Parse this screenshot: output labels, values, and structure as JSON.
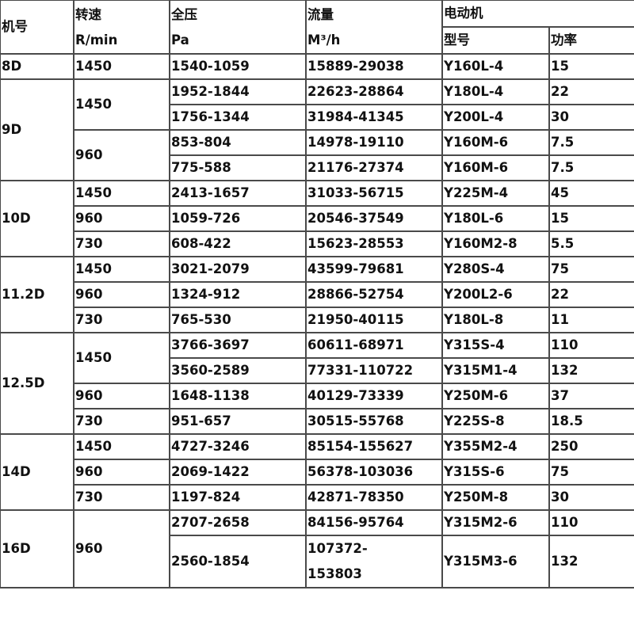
{
  "header": {
    "model": "机号",
    "speed": "转速",
    "speed_unit": "R/min",
    "pressure": "全压",
    "pressure_unit": "Pa",
    "flow": "流量",
    "flow_unit": "M³/h",
    "motor": "电动机",
    "motor_type": "型号",
    "motor_power": "功率"
  },
  "groups": [
    {
      "model": "8D",
      "speeds": [
        {
          "rpm": "1450",
          "rows": [
            [
              "1540-1059",
              "15889-29038",
              "Y160L-4",
              "15"
            ]
          ]
        }
      ]
    },
    {
      "model": "9D",
      "speeds": [
        {
          "rpm": "1450",
          "rows": [
            [
              "1952-1844",
              "22623-28864",
              "Y180L-4",
              "22"
            ],
            [
              "1756-1344",
              "31984-41345",
              "Y200L-4",
              "30"
            ]
          ]
        },
        {
          "rpm": "960",
          "rows": [
            [
              "853-804",
              "14978-19110",
              "Y160M-6",
              "7.5"
            ],
            [
              "775-588",
              "21176-27374",
              "Y160M-6",
              "7.5"
            ]
          ]
        }
      ]
    },
    {
      "model": "10D",
      "speeds": [
        {
          "rpm": "1450",
          "rows": [
            [
              "2413-1657",
              "31033-56715",
              "Y225M-4",
              "45"
            ]
          ]
        },
        {
          "rpm": "960",
          "rows": [
            [
              "1059-726",
              "20546-37549",
              "Y180L-6",
              "15"
            ]
          ]
        },
        {
          "rpm": "730",
          "rows": [
            [
              "608-422",
              "15623-28553",
              "Y160M2-8",
              "5.5"
            ]
          ]
        }
      ]
    },
    {
      "model": "11.2D",
      "speeds": [
        {
          "rpm": "1450",
          "rows": [
            [
              "3021-2079",
              "43599-79681",
              "Y280S-4",
              "75"
            ]
          ]
        },
        {
          "rpm": "960",
          "rows": [
            [
              "1324-912",
              "28866-52754",
              "Y200L2-6",
              "22"
            ]
          ]
        },
        {
          "rpm": "730",
          "rows": [
            [
              "765-530",
              "21950-40115",
              "Y180L-8",
              "11"
            ]
          ]
        }
      ]
    },
    {
      "model": "12.5D",
      "speeds": [
        {
          "rpm": "1450",
          "rows": [
            [
              "3766-3697",
              "60611-68971",
              "Y315S-4",
              "110"
            ],
            [
              "3560-2589",
              "77331-110722",
              "Y315M1-4",
              "132"
            ]
          ]
        },
        {
          "rpm": "960",
          "rows": [
            [
              "1648-1138",
              "40129-73339",
              "Y250M-6",
              "37"
            ]
          ]
        },
        {
          "rpm": "730",
          "rows": [
            [
              "951-657",
              "30515-55768",
              "Y225S-8",
              "18.5"
            ]
          ]
        }
      ]
    },
    {
      "model": "14D",
      "speeds": [
        {
          "rpm": "1450",
          "rows": [
            [
              "4727-3246",
              "85154-155627",
              "Y355M2-4",
              "250"
            ]
          ]
        },
        {
          "rpm": "960",
          "rows": [
            [
              "2069-1422",
              "56378-103036",
              "Y315S-6",
              "75"
            ]
          ]
        },
        {
          "rpm": "730",
          "rows": [
            [
              "1197-824",
              "42871-78350",
              "Y250M-8",
              "30"
            ]
          ]
        }
      ]
    },
    {
      "model": "16D",
      "speeds": [
        {
          "rpm": "960",
          "rows": [
            [
              "2707-2658",
              "84156-95764",
              "Y315M2-6",
              "110"
            ],
            [
              "2560-1854",
              "107372-153803",
              "Y315M3-6",
              "132"
            ]
          ]
        }
      ]
    }
  ]
}
